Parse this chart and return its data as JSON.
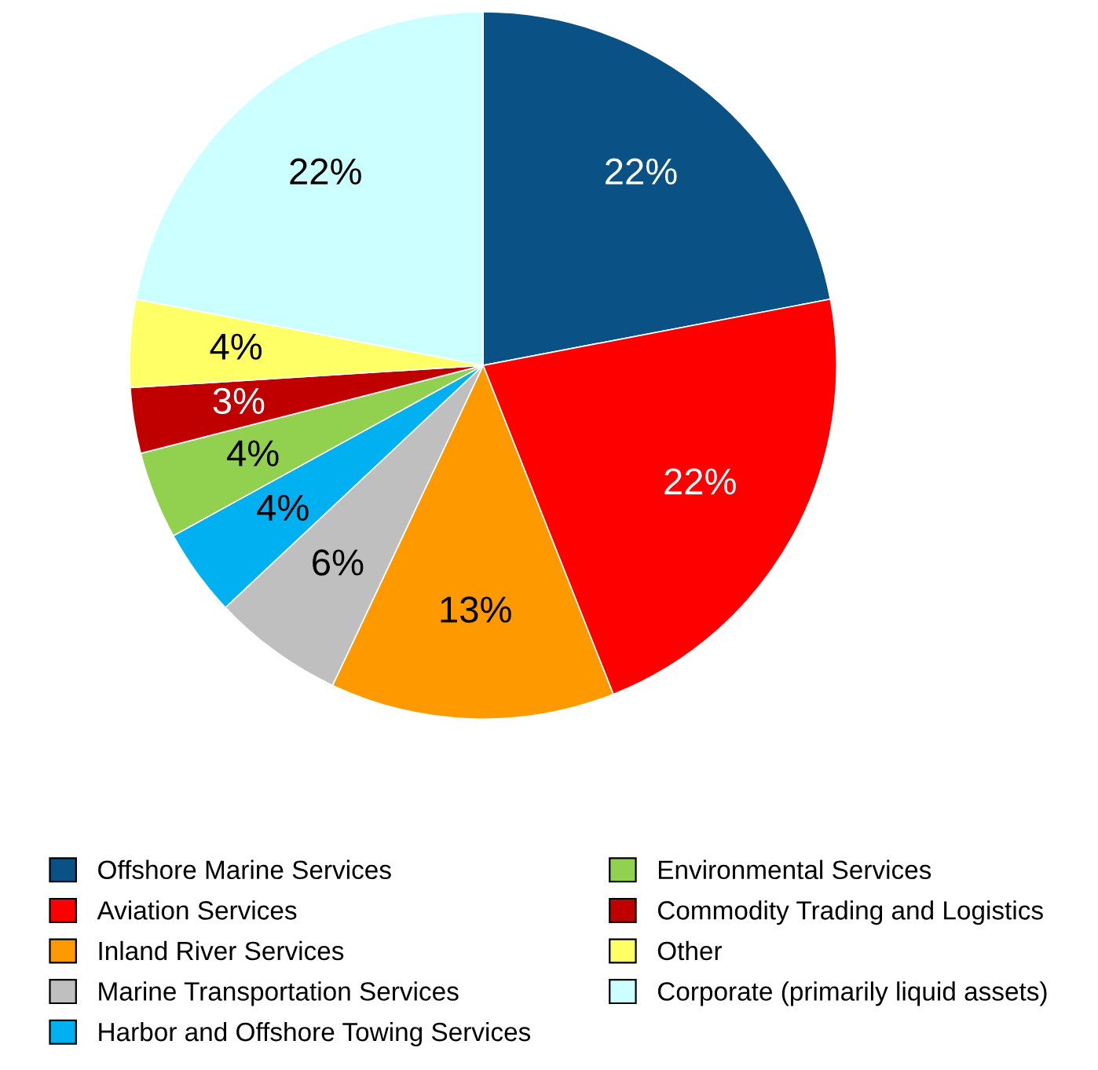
{
  "chart_data": {
    "type": "pie",
    "categories": [
      "Offshore Marine Services",
      "Aviation Services",
      "Inland River Services",
      "Marine Transportation Services",
      "Harbor and Offshore Towing Services",
      "Environmental Services",
      "Commodity Trading and Logistics",
      "Other",
      "Corporate (primarily liquid assets)"
    ],
    "values": [
      22,
      22,
      13,
      6,
      4,
      4,
      3,
      4,
      22
    ],
    "value_labels": [
      "22%",
      "22%",
      "13%",
      "6%",
      "4%",
      "4%",
      "3%",
      "4%",
      "22%"
    ],
    "colors": [
      "#0a5286",
      "#ff0000",
      "#ff9900",
      "#bfbfbf",
      "#00b0f0",
      "#92d050",
      "#c00000",
      "#ffff66",
      "#ccffff"
    ],
    "legend": "bottom"
  }
}
